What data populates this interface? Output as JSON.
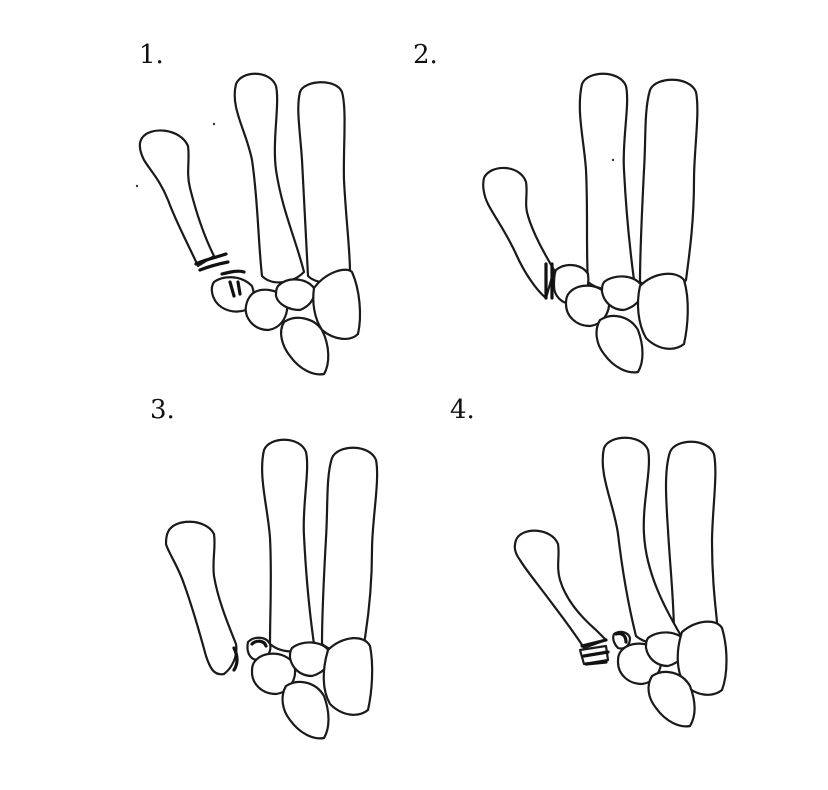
{
  "panels": [
    {
      "label": "1."
    },
    {
      "label": "2."
    },
    {
      "label": "3."
    },
    {
      "label": "4."
    }
  ],
  "colors": {
    "background": "#ffffff",
    "line": "#1a1a1a"
  }
}
